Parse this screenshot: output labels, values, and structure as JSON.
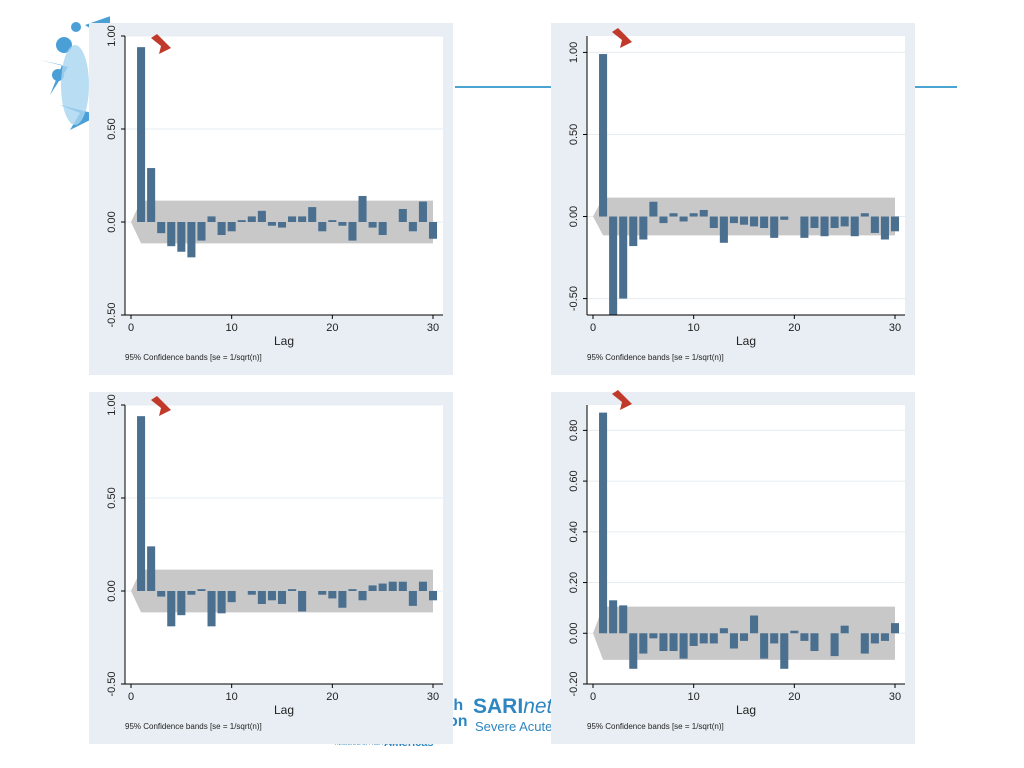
{
  "footer": {
    "org_fragment_1": "th",
    "org_fragment_2": "on",
    "regional_small": "REGIONAL OFFICE FOR THE",
    "americas": "Americas",
    "sarinet_bold": "SARI",
    "sarinet_italic": "net",
    "sarinet_subtitle": "Severe Acute Re"
  },
  "colors": {
    "bar": "#4a6f8f",
    "band": "#c8c8c8",
    "arrow": "#c0392b",
    "panel_bg": "#e8eef3",
    "accent_line": "#4aa3d0"
  },
  "icons": [
    "red-arrow-icon",
    "virus-logo-icon"
  ],
  "chart_data": [
    {
      "type": "bar",
      "xlabel": "Lag",
      "note": "95% Confidence bands [se = 1/sqrt(n)]",
      "xticks": [
        "0",
        "10",
        "20",
        "30"
      ],
      "yticks": [
        "-0.50",
        "0.00",
        "0.50",
        "1.00"
      ],
      "xlim": [
        0,
        30
      ],
      "ylim": [
        -0.5,
        1.0
      ],
      "band": 0.115,
      "lags": [
        1,
        2,
        3,
        4,
        5,
        6,
        7,
        8,
        9,
        10,
        11,
        12,
        13,
        14,
        15,
        16,
        17,
        18,
        19,
        20,
        21,
        22,
        23,
        24,
        25,
        26,
        27,
        28,
        29,
        30
      ],
      "values": [
        0.94,
        0.29,
        -0.06,
        -0.13,
        -0.16,
        -0.19,
        -0.1,
        0.03,
        -0.07,
        -0.05,
        0.01,
        0.03,
        0.06,
        -0.02,
        -0.03,
        0.03,
        0.03,
        0.08,
        -0.05,
        0.01,
        -0.02,
        -0.1,
        0.14,
        -0.03,
        -0.07,
        0.0,
        0.07,
        -0.05,
        0.11,
        -0.09
      ]
    },
    {
      "type": "bar",
      "xlabel": "Lag",
      "note": "95% Confidence bands [se = 1/sqrt(n)]",
      "xticks": [
        "0",
        "10",
        "20",
        "30"
      ],
      "yticks": [
        "-0.50",
        "0.00",
        "0.50",
        "1.00"
      ],
      "xlim": [
        0,
        30
      ],
      "ylim": [
        -0.6,
        1.1
      ],
      "band": 0.115,
      "lags": [
        1,
        2,
        3,
        4,
        5,
        6,
        7,
        8,
        9,
        10,
        11,
        12,
        13,
        14,
        15,
        16,
        17,
        18,
        19,
        20,
        21,
        22,
        23,
        24,
        25,
        26,
        27,
        28,
        29,
        30
      ],
      "values": [
        0.99,
        -0.6,
        -0.5,
        -0.18,
        -0.14,
        0.09,
        -0.04,
        0.02,
        -0.03,
        0.02,
        0.04,
        -0.07,
        -0.16,
        -0.04,
        -0.05,
        -0.06,
        -0.07,
        -0.13,
        -0.02,
        0.0,
        -0.13,
        -0.07,
        -0.12,
        -0.07,
        -0.06,
        -0.12,
        0.02,
        -0.1,
        -0.14,
        -0.09
      ]
    },
    {
      "type": "bar",
      "xlabel": "Lag",
      "note": "95% Confidence bands [se = 1/sqrt(n)]",
      "xticks": [
        "0",
        "10",
        "20",
        "30"
      ],
      "yticks": [
        "-0.50",
        "0.00",
        "0.50",
        "1.00"
      ],
      "xlim": [
        0,
        30
      ],
      "ylim": [
        -0.5,
        1.0
      ],
      "band": 0.115,
      "lags": [
        1,
        2,
        3,
        4,
        5,
        6,
        7,
        8,
        9,
        10,
        11,
        12,
        13,
        14,
        15,
        16,
        17,
        18,
        19,
        20,
        21,
        22,
        23,
        24,
        25,
        26,
        27,
        28,
        29,
        30
      ],
      "values": [
        0.94,
        0.24,
        -0.03,
        -0.19,
        -0.13,
        -0.02,
        0.01,
        -0.19,
        -0.12,
        -0.06,
        0.0,
        -0.02,
        -0.07,
        -0.05,
        -0.07,
        0.01,
        -0.11,
        0.0,
        -0.02,
        -0.04,
        -0.09,
        0.01,
        -0.05,
        0.03,
        0.04,
        0.05,
        0.05,
        -0.08,
        0.05,
        -0.05
      ]
    },
    {
      "type": "bar",
      "xlabel": "Lag",
      "note": "95% Confidence bands [se = 1/sqrt(n)]",
      "xticks": [
        "0",
        "10",
        "20",
        "30"
      ],
      "yticks": [
        "-0.20",
        "0.00",
        "0.20",
        "0.40",
        "0.60",
        "0.80"
      ],
      "xlim": [
        0,
        30
      ],
      "ylim": [
        -0.2,
        0.9
      ],
      "band": 0.105,
      "lags": [
        1,
        2,
        3,
        4,
        5,
        6,
        7,
        8,
        9,
        10,
        11,
        12,
        13,
        14,
        15,
        16,
        17,
        18,
        19,
        20,
        21,
        22,
        23,
        24,
        25,
        26,
        27,
        28,
        29,
        30
      ],
      "values": [
        0.87,
        0.13,
        0.11,
        -0.14,
        -0.08,
        -0.02,
        -0.07,
        -0.07,
        -0.1,
        -0.05,
        -0.04,
        -0.04,
        0.02,
        -0.06,
        -0.03,
        0.07,
        -0.1,
        -0.04,
        -0.14,
        0.01,
        -0.03,
        -0.07,
        0.0,
        -0.09,
        0.03,
        0.0,
        -0.08,
        -0.04,
        -0.03,
        0.04
      ]
    }
  ]
}
